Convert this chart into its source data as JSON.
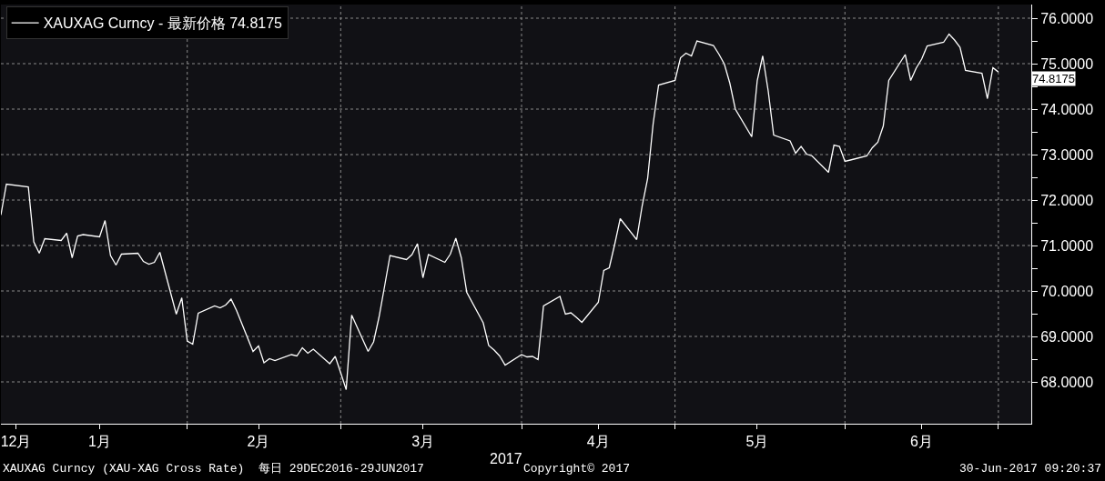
{
  "chart_data": {
    "type": "line",
    "x": [
      "2016-12-29",
      "2016-12-30",
      "2017-01-03",
      "2017-01-04",
      "2017-01-05",
      "2017-01-06",
      "2017-01-09",
      "2017-01-10",
      "2017-01-11",
      "2017-01-12",
      "2017-01-13",
      "2017-01-16",
      "2017-01-17",
      "2017-01-18",
      "2017-01-19",
      "2017-01-20",
      "2017-01-23",
      "2017-01-24",
      "2017-01-25",
      "2017-01-26",
      "2017-01-27",
      "2017-01-30",
      "2017-01-31",
      "2017-02-01",
      "2017-02-02",
      "2017-02-03",
      "2017-02-06",
      "2017-02-07",
      "2017-02-08",
      "2017-02-09",
      "2017-02-10",
      "2017-02-13",
      "2017-02-14",
      "2017-02-15",
      "2017-02-16",
      "2017-02-17",
      "2017-02-20",
      "2017-02-21",
      "2017-02-22",
      "2017-02-23",
      "2017-02-24",
      "2017-02-27",
      "2017-02-28",
      "2017-03-01",
      "2017-03-02",
      "2017-03-03",
      "2017-03-06",
      "2017-03-07",
      "2017-03-08",
      "2017-03-09",
      "2017-03-10",
      "2017-03-13",
      "2017-03-14",
      "2017-03-15",
      "2017-03-16",
      "2017-03-17",
      "2017-03-20",
      "2017-03-21",
      "2017-03-22",
      "2017-03-23",
      "2017-03-24",
      "2017-03-27",
      "2017-03-28",
      "2017-03-29",
      "2017-03-30",
      "2017-03-31",
      "2017-04-03",
      "2017-04-04",
      "2017-04-05",
      "2017-04-06",
      "2017-04-07",
      "2017-04-10",
      "2017-04-11",
      "2017-04-12",
      "2017-04-13",
      "2017-04-14",
      "2017-04-17",
      "2017-04-18",
      "2017-04-19",
      "2017-04-20",
      "2017-04-21",
      "2017-04-24",
      "2017-04-25",
      "2017-04-26",
      "2017-04-27",
      "2017-04-28",
      "2017-05-01",
      "2017-05-02",
      "2017-05-03",
      "2017-05-04",
      "2017-05-05",
      "2017-05-08",
      "2017-05-09",
      "2017-05-10",
      "2017-05-11",
      "2017-05-12",
      "2017-05-15",
      "2017-05-16",
      "2017-05-17",
      "2017-05-18",
      "2017-05-19",
      "2017-05-22",
      "2017-05-23",
      "2017-05-24",
      "2017-05-25",
      "2017-05-26",
      "2017-05-29",
      "2017-05-30",
      "2017-05-31",
      "2017-06-01",
      "2017-06-02",
      "2017-06-05",
      "2017-06-06",
      "2017-06-07",
      "2017-06-08",
      "2017-06-09",
      "2017-06-12",
      "2017-06-13",
      "2017-06-14",
      "2017-06-15",
      "2017-06-16",
      "2017-06-19",
      "2017-06-20",
      "2017-06-21",
      "2017-06-22",
      "2017-06-23",
      "2017-06-26",
      "2017-06-27",
      "2017-06-28",
      "2017-06-29"
    ],
    "series": [
      {
        "name": "XAUXAG Curncy - 最新价格 74.8175",
        "color": "#ffffff",
        "values": [
          71.67,
          72.35,
          72.29,
          71.08,
          70.83,
          71.15,
          71.11,
          71.27,
          70.73,
          71.21,
          71.24,
          71.19,
          71.55,
          70.78,
          70.57,
          70.81,
          70.83,
          70.65,
          70.59,
          70.63,
          70.85,
          69.49,
          69.85,
          68.9,
          68.83,
          69.51,
          69.67,
          69.63,
          69.69,
          69.82,
          69.57,
          68.67,
          68.79,
          68.42,
          68.51,
          68.47,
          68.6,
          68.57,
          68.75,
          68.63,
          68.72,
          68.4,
          68.56,
          68.2,
          67.83,
          69.47,
          68.67,
          68.88,
          69.43,
          70.1,
          70.78,
          70.69,
          70.8,
          71.04,
          70.29,
          70.8,
          70.63,
          70.81,
          71.16,
          70.73,
          69.97,
          69.3,
          68.8,
          68.7,
          68.57,
          68.37,
          68.6,
          68.55,
          68.56,
          68.49,
          69.67,
          69.88,
          69.49,
          69.52,
          69.42,
          69.31,
          69.75,
          70.45,
          70.51,
          71.03,
          71.59,
          71.13,
          71.87,
          72.47,
          73.67,
          74.53,
          74.63,
          75.13,
          75.23,
          75.17,
          75.5,
          75.4,
          75.21,
          74.99,
          74.57,
          74.0,
          73.39,
          74.63,
          75.17,
          74.4,
          73.43,
          73.3,
          73.03,
          73.18,
          73.01,
          72.97,
          72.61,
          73.21,
          73.18,
          72.85,
          72.88,
          72.97,
          73.15,
          73.27,
          73.63,
          74.63,
          75.2,
          74.63,
          74.9,
          75.1,
          75.39,
          75.47,
          75.65,
          75.52,
          75.36,
          74.85,
          74.79,
          74.23,
          74.91,
          74.8175
        ]
      }
    ],
    "xlim": [
      "2016-12-29",
      "2017-07-05"
    ],
    "xticks": [
      {
        "value": "2017-02-01",
        "label": null
      },
      {
        "value": "2017-03-01",
        "label": null
      },
      {
        "value": "2017-04-03",
        "label": null
      },
      {
        "value": "2017-05-01",
        "label": null
      },
      {
        "value": "2017-06-01",
        "label": null
      },
      {
        "value": "2017-06-29",
        "label": null
      },
      {
        "value": "2016-12-31T18:00",
        "label": "12月"
      },
      {
        "value": "2017-01-16",
        "label": "1月"
      },
      {
        "value": "2017-02-14",
        "label": "2月"
      },
      {
        "value": "2017-03-16",
        "label": "3月"
      },
      {
        "value": "2017-04-17",
        "label": "4月"
      },
      {
        "value": "2017-05-16",
        "label": "5月"
      },
      {
        "value": "2017-06-15",
        "label": "6月"
      }
    ],
    "ylim": [
      67.08,
      76.3
    ],
    "yticks": [
      {
        "value": 68,
        "label": "68.0000"
      },
      {
        "value": 68.5,
        "label": null
      },
      {
        "value": 69,
        "label": "69.0000"
      },
      {
        "value": 69.5,
        "label": null
      },
      {
        "value": 70,
        "label": "70.0000"
      },
      {
        "value": 70.5,
        "label": null
      },
      {
        "value": 71,
        "label": "71.0000"
      },
      {
        "value": 71.5,
        "label": null
      },
      {
        "value": 72,
        "label": "72.0000"
      },
      {
        "value": 72.5,
        "label": null
      },
      {
        "value": 73,
        "label": "73.0000"
      },
      {
        "value": 73.5,
        "label": null
      },
      {
        "value": 74,
        "label": "74.0000"
      },
      {
        "value": 74.5,
        "label": null
      },
      {
        "value": 75,
        "label": "75.0000"
      },
      {
        "value": 75.5,
        "label": null
      },
      {
        "value": 76,
        "label": "76.0000"
      }
    ],
    "grid": true,
    "legend": "top left",
    "marker": "none",
    "line_style": "solid",
    "annotations": [
      "2017",
      "XAUXAG Curncy (XAU-XAG Cross Rate)  每日 29DEC2016-29JUN2017",
      "Copyright© 2017",
      "30-Jun-2017 09:20:37",
      "74.8175"
    ]
  }
}
